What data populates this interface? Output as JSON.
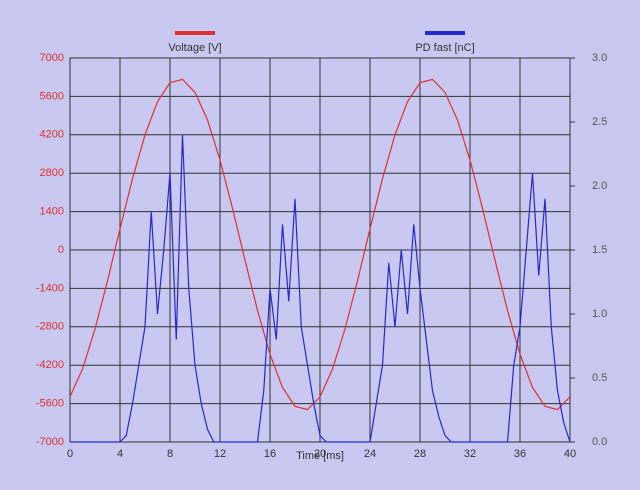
{
  "chart_data": {
    "type": "line",
    "xlabel": "Time  [ms]",
    "xlim": [
      0,
      40
    ],
    "xticks": [
      0,
      4,
      8,
      12,
      16,
      20,
      24,
      28,
      32,
      36,
      40
    ],
    "ylim": [
      -7000,
      7000
    ],
    "yticks": [
      -7000,
      -5600,
      -4200,
      -2800,
      -1400,
      0,
      1400,
      2800,
      4200,
      5600,
      7000
    ],
    "y2lim": [
      0,
      3
    ],
    "y2ticks": [
      {
        "value": 0,
        "label": "0.0"
      },
      0.5,
      {
        "value": 1,
        "label": "1.0"
      },
      1.5,
      {
        "value": 2,
        "label": "2.0"
      },
      2.5,
      {
        "value": 3,
        "label": "3.0"
      }
    ],
    "grid": true,
    "series": [
      {
        "name": "Voltage [V]",
        "color": "#e03030",
        "x": [
          0,
          1,
          2,
          3,
          4,
          5,
          6,
          7,
          8,
          9,
          10,
          11,
          12,
          13,
          14,
          15,
          16,
          17,
          18,
          19,
          20,
          21,
          22,
          23,
          24,
          25,
          26,
          27,
          28,
          29,
          30,
          31,
          32,
          33,
          34,
          35,
          36,
          37,
          38,
          39,
          40
        ],
        "values": [
          -5350,
          -4340,
          -2880,
          -1120,
          770,
          2600,
          4200,
          5410,
          6100,
          6220,
          5750,
          4740,
          3280,
          1520,
          -370,
          -2200,
          -3800,
          -5010,
          -5700,
          -5820,
          -5350,
          -4340,
          -2880,
          -1120,
          770,
          2600,
          4200,
          5410,
          6100,
          6220,
          5750,
          4740,
          3280,
          1520,
          -370,
          -2200,
          -3800,
          -5010,
          -5700,
          -5820,
          -5350
        ]
      },
      {
        "name": "PD fast [nC]",
        "color": "#2828d0",
        "axis": "y2",
        "x": [
          0,
          0.5,
          1,
          1.5,
          2,
          2.5,
          3,
          3.5,
          4,
          4.5,
          5,
          5.5,
          6,
          6.5,
          7,
          7.5,
          8,
          8.5,
          9,
          9.5,
          10,
          10.5,
          11,
          11.5,
          12,
          12.5,
          13,
          13.5,
          14,
          14.5,
          15,
          15.5,
          16,
          16.5,
          17,
          17.5,
          18,
          18.5,
          19,
          19.5,
          20,
          20.5,
          21,
          21.5,
          22,
          22.5,
          23,
          23.5,
          24,
          24.5,
          25,
          25.5,
          26,
          26.5,
          27,
          27.5,
          28,
          28.5,
          29,
          29.5,
          30,
          30.5,
          31,
          31.5,
          32,
          32.5,
          33,
          33.5,
          34,
          34.5,
          35,
          35.5,
          36,
          36.5,
          37,
          37.5,
          38,
          38.5,
          39,
          39.5,
          40
        ],
        "values": [
          0,
          0,
          0,
          0,
          0,
          0,
          0,
          0,
          0,
          0.05,
          0.3,
          0.6,
          0.9,
          1.8,
          1.0,
          1.5,
          2.1,
          0.8,
          2.4,
          1.2,
          0.6,
          0.3,
          0.1,
          0,
          0,
          0,
          0,
          0,
          0,
          0,
          0,
          0.4,
          1.2,
          0.8,
          1.7,
          1.1,
          1.9,
          0.9,
          0.6,
          0.3,
          0.05,
          0,
          0,
          0,
          0,
          0,
          0,
          0,
          0,
          0.3,
          0.6,
          1.4,
          0.9,
          1.5,
          1.0,
          1.7,
          1.2,
          0.8,
          0.4,
          0.2,
          0.05,
          0,
          0,
          0,
          0,
          0,
          0,
          0,
          0,
          0,
          0,
          0.6,
          0.9,
          1.5,
          2.1,
          1.3,
          1.9,
          0.9,
          0.4,
          0.15,
          0
        ]
      }
    ]
  }
}
